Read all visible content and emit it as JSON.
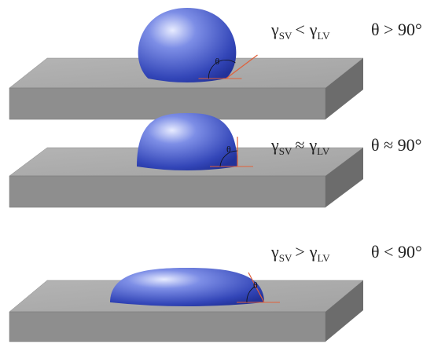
{
  "panels": [
    {
      "left": "γ",
      "left_sub": "SV",
      "relation": "<",
      "right": "γ",
      "right_sub": "LV",
      "angle_condition": "θ > 90°",
      "angle_label": "θ"
    },
    {
      "left": "γ",
      "left_sub": "SV",
      "relation": "≈",
      "right": "γ",
      "right_sub": "LV",
      "angle_condition": "θ ≈ 90°",
      "angle_label": "θ"
    },
    {
      "left": "γ",
      "left_sub": "SV",
      "relation": ">",
      "right": "γ",
      "right_sub": "LV",
      "angle_condition": "θ < 90°",
      "angle_label": "θ"
    }
  ]
}
